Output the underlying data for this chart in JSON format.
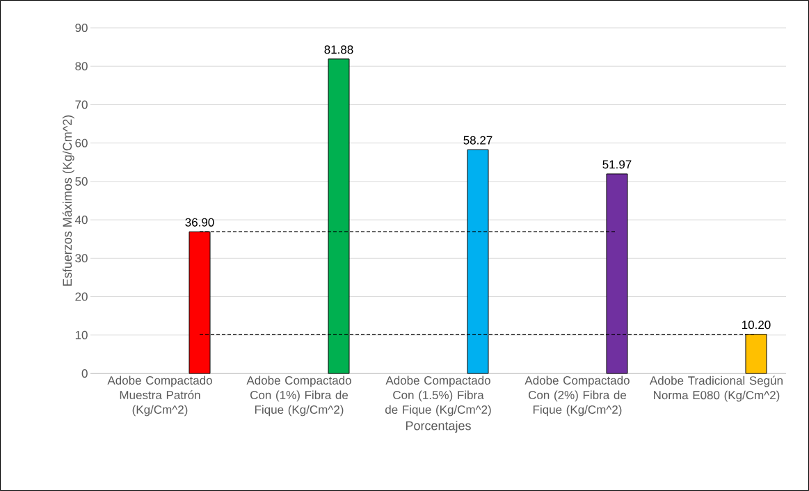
{
  "chart_data": {
    "type": "bar",
    "categories": [
      "Adobe Compactado Muestra Patrón (Kg/Cm^2)",
      "Adobe Compactado Con (1%) Fibra de Fique (Kg/Cm^2)",
      "Adobe Compactado Con (1.5%) Fibra de Fique (Kg/Cm^2)",
      "Adobe Compactado Con (2%) Fibra de Fique (Kg/Cm^2)",
      "Adobe Tradicional Según Norma E080 (Kg/Cm^2)"
    ],
    "values": [
      36.9,
      81.88,
      58.27,
      51.97,
      10.2
    ],
    "value_labels": [
      "36.90",
      "81.88",
      "58.27",
      "51.97",
      "10.20"
    ],
    "colors": [
      "#ff0000",
      "#00b050",
      "#00b0f0",
      "#7030a0",
      "#ffc000"
    ],
    "xlabel": "Porcentajes",
    "ylabel": "Esfuerzos Máximos (Kg/Cm^2)",
    "ylim": [
      0,
      90
    ],
    "yticks": [
      0,
      10,
      20,
      30,
      40,
      50,
      60,
      70,
      80,
      90
    ],
    "grid": "y",
    "ref_lines": [
      {
        "axis": "y",
        "value": 36.9,
        "line_style": "dashed",
        "color": "#000000"
      },
      {
        "axis": "y",
        "value": 10.2,
        "line_style": "dashed",
        "color": "#000000"
      }
    ]
  }
}
